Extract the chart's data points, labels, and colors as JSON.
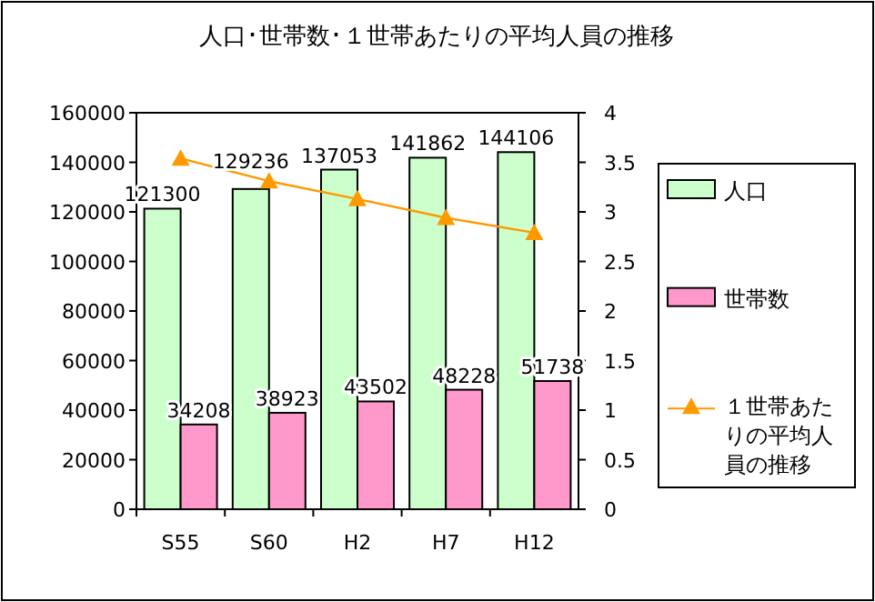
{
  "chart_data": {
    "type": "bar",
    "title": "人口･世帯数･１世帯あたりの平均人員の推移",
    "categories": [
      "S55",
      "S60",
      "H2",
      "H7",
      "H12"
    ],
    "series": [
      {
        "name": "人口",
        "color": "#ccffcc",
        "values": [
          121300,
          129236,
          137053,
          141862,
          144106
        ],
        "value_labels": [
          "121300",
          "129236",
          "137053",
          "141862",
          "144106"
        ]
      },
      {
        "name": "世帯数",
        "color": "#ff99cc",
        "values": [
          34208,
          38923,
          43502,
          48228,
          51738
        ],
        "value_labels": [
          "34208",
          "38923",
          "43502",
          "48228",
          "51738"
        ]
      },
      {
        "name": "１世帯あたりの平均人員の推移",
        "type": "line",
        "axis": "y2",
        "color": "#ff9900",
        "marker": "triangle",
        "values": [
          3.54,
          3.31,
          3.13,
          2.94,
          2.79
        ]
      }
    ],
    "ylim": [
      0,
      160000
    ],
    "yticks": [
      0,
      20000,
      40000,
      60000,
      80000,
      100000,
      120000,
      140000,
      160000
    ],
    "y2lim": [
      0,
      4
    ],
    "y2ticks": [
      0,
      0.5,
      1,
      1.5,
      2,
      2.5,
      3,
      3.5,
      4
    ],
    "grid": false,
    "legend": "right"
  }
}
